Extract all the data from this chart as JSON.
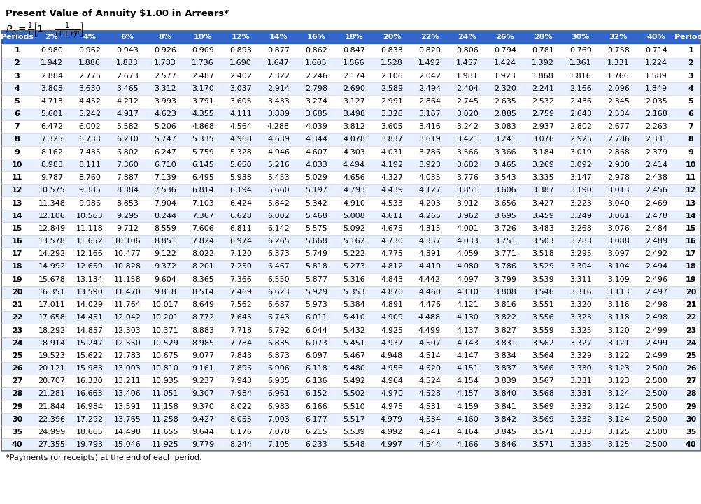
{
  "title": "Present Value of Annuity $1.00 in Arrears*",
  "footnote": "*Payments (or receipts) at the end of each period.",
  "header_bg": "#3366CC",
  "header_color": "#FFFFFF",
  "alt_row_color": "#E8F0FF",
  "white_row_color": "#FFFFFF",
  "columns": [
    "Periods",
    "2%",
    "4%",
    "6%",
    "8%",
    "10%",
    "12%",
    "14%",
    "16%",
    "18%",
    "20%",
    "22%",
    "24%",
    "26%",
    "28%",
    "30%",
    "32%",
    "40%",
    "Periods"
  ],
  "rows": [
    [
      1,
      0.98,
      0.962,
      0.943,
      0.926,
      0.909,
      0.893,
      0.877,
      0.862,
      0.847,
      0.833,
      0.82,
      0.806,
      0.794,
      0.781,
      0.769,
      0.758,
      0.714,
      1
    ],
    [
      2,
      1.942,
      1.886,
      1.833,
      1.783,
      1.736,
      1.69,
      1.647,
      1.605,
      1.566,
      1.528,
      1.492,
      1.457,
      1.424,
      1.392,
      1.361,
      1.331,
      1.224,
      2
    ],
    [
      3,
      2.884,
      2.775,
      2.673,
      2.577,
      2.487,
      2.402,
      2.322,
      2.246,
      2.174,
      2.106,
      2.042,
      1.981,
      1.923,
      1.868,
      1.816,
      1.766,
      1.589,
      3
    ],
    [
      4,
      3.808,
      3.63,
      3.465,
      3.312,
      3.17,
      3.037,
      2.914,
      2.798,
      2.69,
      2.589,
      2.494,
      2.404,
      2.32,
      2.241,
      2.166,
      2.096,
      1.849,
      4
    ],
    [
      5,
      4.713,
      4.452,
      4.212,
      3.993,
      3.791,
      3.605,
      3.433,
      3.274,
      3.127,
      2.991,
      2.864,
      2.745,
      2.635,
      2.532,
      2.436,
      2.345,
      2.035,
      5
    ],
    [
      6,
      5.601,
      5.242,
      4.917,
      4.623,
      4.355,
      4.111,
      3.889,
      3.685,
      3.498,
      3.326,
      3.167,
      3.02,
      2.885,
      2.759,
      2.643,
      2.534,
      2.168,
      6
    ],
    [
      7,
      6.472,
      6.002,
      5.582,
      5.206,
      4.868,
      4.564,
      4.288,
      4.039,
      3.812,
      3.605,
      3.416,
      3.242,
      3.083,
      2.937,
      2.802,
      2.677,
      2.263,
      7
    ],
    [
      8,
      7.325,
      6.733,
      6.21,
      5.747,
      5.335,
      4.968,
      4.639,
      4.344,
      4.078,
      3.837,
      3.619,
      3.421,
      3.241,
      3.076,
      2.925,
      2.786,
      2.331,
      8
    ],
    [
      9,
      8.162,
      7.435,
      6.802,
      6.247,
      5.759,
      5.328,
      4.946,
      4.607,
      4.303,
      4.031,
      3.786,
      3.566,
      3.366,
      3.184,
      3.019,
      2.868,
      2.379,
      9
    ],
    [
      10,
      8.983,
      8.111,
      7.36,
      6.71,
      6.145,
      5.65,
      5.216,
      4.833,
      4.494,
      4.192,
      3.923,
      3.682,
      3.465,
      3.269,
      3.092,
      2.93,
      2.414,
      10
    ],
    [
      11,
      9.787,
      8.76,
      7.887,
      7.139,
      6.495,
      5.938,
      5.453,
      5.029,
      4.656,
      4.327,
      4.035,
      3.776,
      3.543,
      3.335,
      3.147,
      2.978,
      2.438,
      11
    ],
    [
      12,
      10.575,
      9.385,
      8.384,
      7.536,
      6.814,
      6.194,
      5.66,
      5.197,
      4.793,
      4.439,
      4.127,
      3.851,
      3.606,
      3.387,
      3.19,
      3.013,
      2.456,
      12
    ],
    [
      13,
      11.348,
      9.986,
      8.853,
      7.904,
      7.103,
      6.424,
      5.842,
      5.342,
      4.91,
      4.533,
      4.203,
      3.912,
      3.656,
      3.427,
      3.223,
      3.04,
      2.469,
      13
    ],
    [
      14,
      12.106,
      10.563,
      9.295,
      8.244,
      7.367,
      6.628,
      6.002,
      5.468,
      5.008,
      4.611,
      4.265,
      3.962,
      3.695,
      3.459,
      3.249,
      3.061,
      2.478,
      14
    ],
    [
      15,
      12.849,
      11.118,
      9.712,
      8.559,
      7.606,
      6.811,
      6.142,
      5.575,
      5.092,
      4.675,
      4.315,
      4.001,
      3.726,
      3.483,
      3.268,
      3.076,
      2.484,
      15
    ],
    [
      16,
      13.578,
      11.652,
      10.106,
      8.851,
      7.824,
      6.974,
      6.265,
      5.668,
      5.162,
      4.73,
      4.357,
      4.033,
      3.751,
      3.503,
      3.283,
      3.088,
      2.489,
      16
    ],
    [
      17,
      14.292,
      12.166,
      10.477,
      9.122,
      8.022,
      7.12,
      6.373,
      5.749,
      5.222,
      4.775,
      4.391,
      4.059,
      3.771,
      3.518,
      3.295,
      3.097,
      2.492,
      17
    ],
    [
      18,
      14.992,
      12.659,
      10.828,
      9.372,
      8.201,
      7.25,
      6.467,
      5.818,
      5.273,
      4.812,
      4.419,
      4.08,
      3.786,
      3.529,
      3.304,
      3.104,
      2.494,
      18
    ],
    [
      19,
      15.678,
      13.134,
      11.158,
      9.604,
      8.365,
      7.366,
      6.55,
      5.877,
      5.316,
      4.843,
      4.442,
      4.097,
      3.799,
      3.539,
      3.311,
      3.109,
      2.496,
      19
    ],
    [
      20,
      16.351,
      13.59,
      11.47,
      9.818,
      8.514,
      7.469,
      6.623,
      5.929,
      5.353,
      4.87,
      4.46,
      4.11,
      3.808,
      3.546,
      3.316,
      3.113,
      2.497,
      20
    ],
    [
      21,
      17.011,
      14.029,
      11.764,
      10.017,
      8.649,
      7.562,
      6.687,
      5.973,
      5.384,
      4.891,
      4.476,
      4.121,
      3.816,
      3.551,
      3.32,
      3.116,
      2.498,
      21
    ],
    [
      22,
      17.658,
      14.451,
      12.042,
      10.201,
      8.772,
      7.645,
      6.743,
      6.011,
      5.41,
      4.909,
      4.488,
      4.13,
      3.822,
      3.556,
      3.323,
      3.118,
      2.498,
      22
    ],
    [
      23,
      18.292,
      14.857,
      12.303,
      10.371,
      8.883,
      7.718,
      6.792,
      6.044,
      5.432,
      4.925,
      4.499,
      4.137,
      3.827,
      3.559,
      3.325,
      3.12,
      2.499,
      23
    ],
    [
      24,
      18.914,
      15.247,
      12.55,
      10.529,
      8.985,
      7.784,
      6.835,
      6.073,
      5.451,
      4.937,
      4.507,
      4.143,
      3.831,
      3.562,
      3.327,
      3.121,
      2.499,
      24
    ],
    [
      25,
      19.523,
      15.622,
      12.783,
      10.675,
      9.077,
      7.843,
      6.873,
      6.097,
      5.467,
      4.948,
      4.514,
      4.147,
      3.834,
      3.564,
      3.329,
      3.122,
      2.499,
      25
    ],
    [
      26,
      20.121,
      15.983,
      13.003,
      10.81,
      9.161,
      7.896,
      6.906,
      6.118,
      5.48,
      4.956,
      4.52,
      4.151,
      3.837,
      3.566,
      3.33,
      3.123,
      2.5,
      26
    ],
    [
      27,
      20.707,
      16.33,
      13.211,
      10.935,
      9.237,
      7.943,
      6.935,
      6.136,
      5.492,
      4.964,
      4.524,
      4.154,
      3.839,
      3.567,
      3.331,
      3.123,
      2.5,
      27
    ],
    [
      28,
      21.281,
      16.663,
      13.406,
      11.051,
      9.307,
      7.984,
      6.961,
      6.152,
      5.502,
      4.97,
      4.528,
      4.157,
      3.84,
      3.568,
      3.331,
      3.124,
      2.5,
      28
    ],
    [
      29,
      21.844,
      16.984,
      13.591,
      11.158,
      9.37,
      8.022,
      6.983,
      6.166,
      5.51,
      4.975,
      4.531,
      4.159,
      3.841,
      3.569,
      3.332,
      3.124,
      2.5,
      29
    ],
    [
      30,
      22.396,
      17.292,
      13.765,
      11.258,
      9.427,
      8.055,
      7.003,
      6.177,
      5.517,
      4.979,
      4.534,
      4.16,
      3.842,
      3.569,
      3.332,
      3.124,
      2.5,
      30
    ],
    [
      35,
      24.999,
      18.665,
      14.498,
      11.655,
      9.644,
      8.176,
      7.07,
      6.215,
      5.539,
      4.992,
      4.541,
      4.164,
      3.845,
      3.571,
      3.333,
      3.125,
      2.5,
      35
    ],
    [
      40,
      27.355,
      19.793,
      15.046,
      11.925,
      9.779,
      8.244,
      7.105,
      6.233,
      5.548,
      4.997,
      4.544,
      4.166,
      3.846,
      3.571,
      3.333,
      3.125,
      2.5,
      40
    ]
  ]
}
